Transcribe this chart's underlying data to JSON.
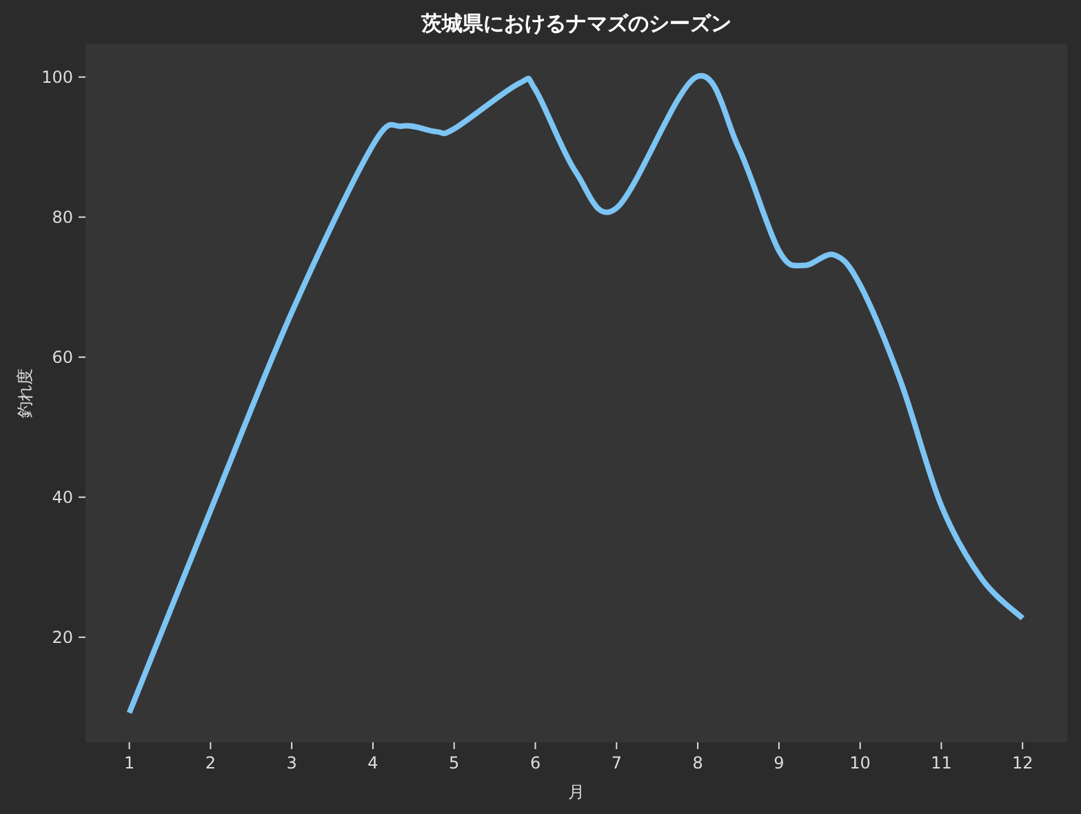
{
  "chart_data": {
    "type": "line",
    "title": "茨城県におけるナマズのシーズン",
    "xlabel": "月",
    "ylabel": "釣れ度",
    "x": [
      1,
      2,
      3,
      4,
      4.36,
      4.78,
      5,
      5.8,
      6,
      6.5,
      7,
      7.98,
      8.5,
      9,
      9.31,
      9.68,
      10,
      10.5,
      11,
      11.5,
      12
    ],
    "values": [
      9.2,
      38.1,
      66.4,
      90.3,
      93.0,
      92.2,
      92.6,
      99.1,
      98.2,
      86.4,
      81.3,
      100,
      90.0,
      75.2,
      73.1,
      74.6,
      70.3,
      56.5,
      38.8,
      28.3,
      22.7
    ],
    "color": "#7cc4f4",
    "xlim": [
      0.46,
      12.55
    ],
    "ylim": [
      5,
      104.7
    ],
    "xticks": [
      1,
      2,
      3,
      4,
      5,
      6,
      7,
      8,
      9,
      10,
      11,
      12
    ],
    "yticks": [
      20,
      40,
      60,
      80,
      100
    ]
  }
}
